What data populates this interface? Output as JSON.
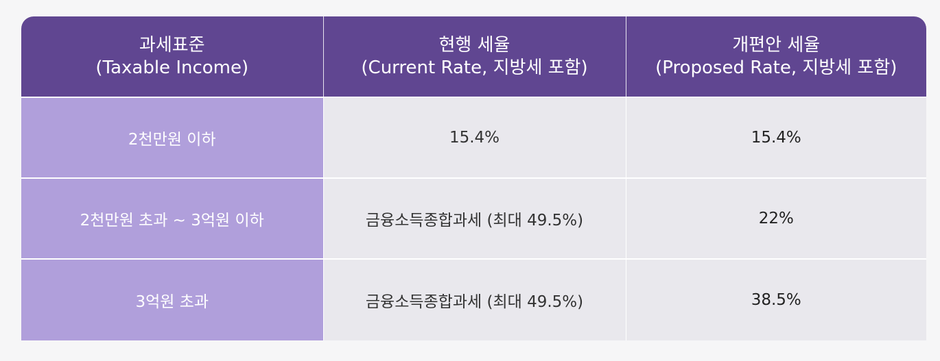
{
  "table": {
    "headers": [
      {
        "line1": "과세표준",
        "line2": "(Taxable Income)"
      },
      {
        "line1": "현행 세율",
        "line2": "(Current Rate, 지방세 포함)"
      },
      {
        "line1": "개편안 세율",
        "line2": "(Proposed Rate, 지방세 포함)"
      }
    ],
    "rows": [
      {
        "bracket": "2천만원 이하",
        "current": "15.4%",
        "proposed": "15.4%"
      },
      {
        "bracket": "2천만원 초과 ~ 3억원 이하",
        "current": "금융소득종합과세 (최대 49.5%)",
        "proposed": "22%"
      },
      {
        "bracket": "3억원 초과",
        "current": "금융소득종합과세 (최대 49.5%)",
        "proposed": "38.5%"
      }
    ]
  },
  "colors": {
    "header_bg": "#604691",
    "label_bg": "#b09fdb",
    "cell_bg": "#e9e8ed",
    "page_bg": "#f6f6f7"
  }
}
